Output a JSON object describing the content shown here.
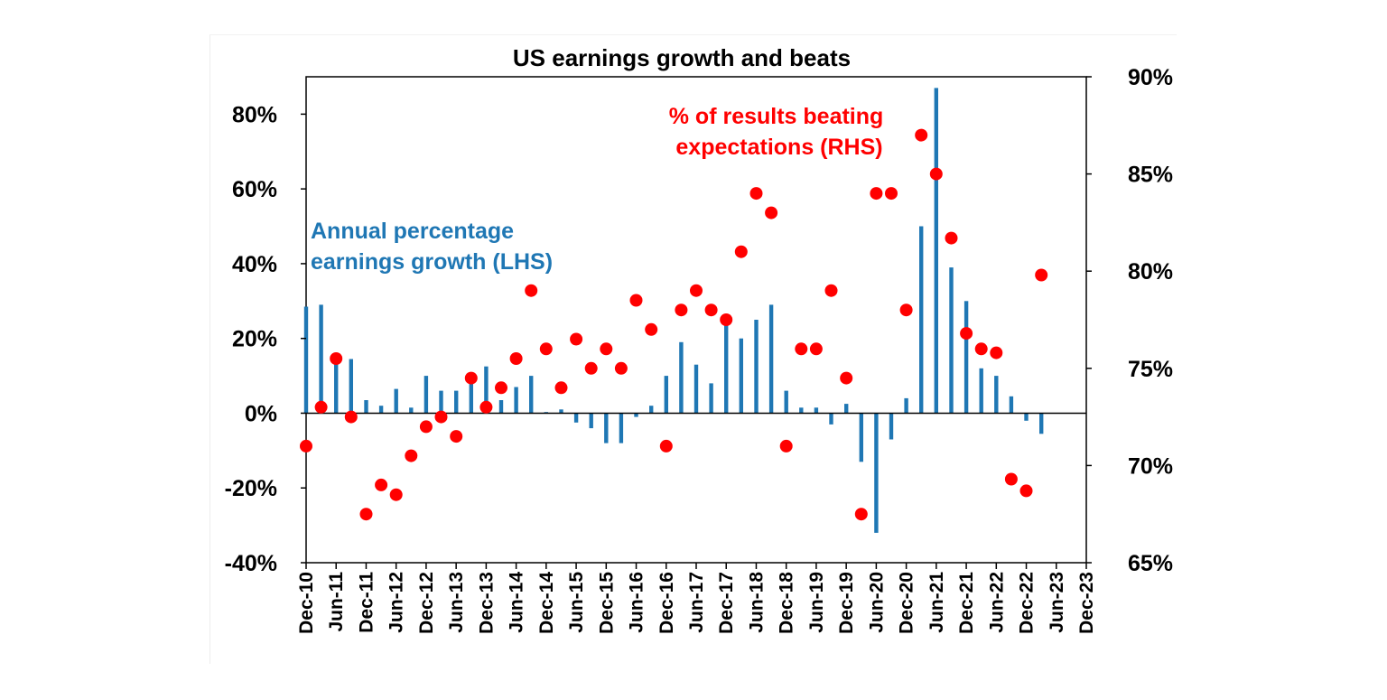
{
  "chart_data": {
    "type": "bar+scatter",
    "title": "US earnings growth and beats",
    "left_axis": {
      "ticks": [
        "80%",
        "60%",
        "40%",
        "20%",
        "0%",
        "-20%",
        "-40%"
      ],
      "ylim": [
        -40,
        90
      ]
    },
    "right_axis": {
      "ticks": [
        "90%",
        "85%",
        "80%",
        "75%",
        "70%",
        "65%"
      ],
      "ylim": [
        65,
        90
      ]
    },
    "x_ticks": [
      "Dec-10",
      "Jun-11",
      "Dec-11",
      "Jun-12",
      "Dec-12",
      "Jun-13",
      "Dec-13",
      "Jun-14",
      "Dec-14",
      "Jun-15",
      "Dec-15",
      "Jun-16",
      "Dec-16",
      "Jun-17",
      "Dec-17",
      "Jun-18",
      "Dec-18",
      "Jun-19",
      "Dec-19",
      "Jun-20",
      "Dec-20",
      "Jun-21",
      "Dec-21",
      "Jun-22",
      "Dec-22",
      "Jun-23",
      "Dec-23"
    ],
    "x_range_quarters": [
      0,
      52
    ],
    "series": [
      {
        "name": "Annual percentage earnings growth (LHS)",
        "type": "bar",
        "axis": "left",
        "color": "#1f77b4",
        "label_lines": [
          "Annual percentage",
          "earnings growth (LHS)"
        ],
        "values": [
          28.5,
          29,
          14,
          14.5,
          3.5,
          2,
          6.5,
          1.5,
          10,
          6,
          6,
          8,
          12.5,
          3.5,
          7,
          10,
          0.3,
          1,
          -2.5,
          -4,
          -8,
          -8,
          -1,
          2,
          10,
          19,
          13,
          8,
          24.5,
          20,
          25,
          29,
          6,
          1.5,
          1.5,
          -3,
          2.5,
          -13,
          -32,
          -7,
          4,
          50,
          87,
          39,
          30,
          12,
          10,
          4.5,
          -2,
          -5.5
        ]
      },
      {
        "name": "% of results beating expectations (RHS)",
        "type": "scatter",
        "axis": "right",
        "color": "#ff0000",
        "label_lines": [
          "% of results beating",
          "expectations (RHS)"
        ],
        "values": [
          71,
          73,
          75.5,
          72.5,
          67.5,
          69,
          68.5,
          70.5,
          72,
          72.5,
          71.5,
          74.5,
          73,
          74,
          75.5,
          79,
          76,
          74,
          76.5,
          75,
          76,
          75,
          78.5,
          77,
          71,
          78,
          79,
          78,
          77.5,
          81,
          84,
          83,
          71,
          76,
          76,
          79,
          74.5,
          67.5,
          84,
          84,
          78,
          87,
          85,
          81.7,
          76.8,
          76,
          75.8,
          69.3,
          68.7,
          79.8
        ]
      }
    ]
  }
}
